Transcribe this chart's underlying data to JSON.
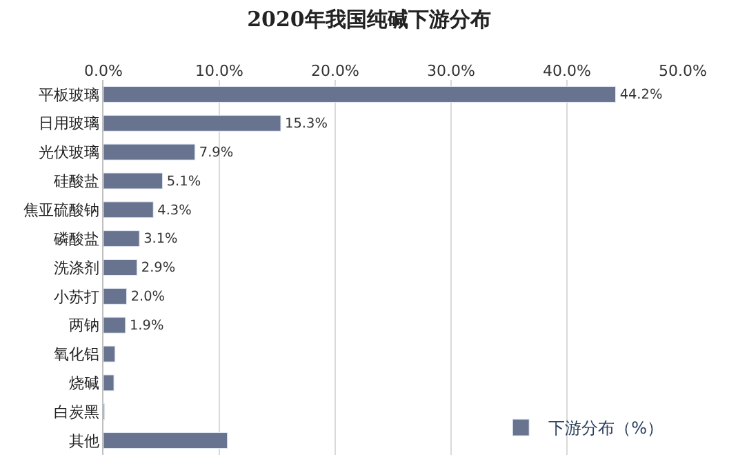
{
  "chart_data": {
    "type": "bar",
    "orientation": "horizontal",
    "title": "2020年我国纯碱下游分布",
    "categories": [
      "平板玻璃",
      "日用玻璃",
      "光伏玻璃",
      "硅酸盐",
      "焦亚硫酸钠",
      "磷酸盐",
      "洗涤剂",
      "小苏打",
      "两钠",
      "氧化铝",
      "烧碱",
      "白炭黑",
      "其他"
    ],
    "series": [
      {
        "name": "下游分布（%）",
        "color": "#68738f",
        "values": [
          44.2,
          15.3,
          7.9,
          5.1,
          4.3,
          3.1,
          2.9,
          2.0,
          1.9,
          1.0,
          0.9,
          0.1,
          10.7
        ],
        "value_labels": [
          "44.2%",
          "15.3%",
          "7.9%",
          "5.1%",
          "4.3%",
          "3.1%",
          "2.9%",
          "2.0%",
          "1.9%",
          null,
          null,
          null,
          null
        ]
      }
    ],
    "xlim": [
      0,
      50
    ],
    "xticks": [
      {
        "value": 0,
        "label": "0.0%"
      },
      {
        "value": 10,
        "label": "10.0%"
      },
      {
        "value": 20,
        "label": "20.0%"
      },
      {
        "value": 30,
        "label": "30.0%"
      },
      {
        "value": 40,
        "label": "40.0%"
      },
      {
        "value": 50,
        "label": "50.0%"
      }
    ],
    "grid": "x",
    "legend": "bottom right"
  }
}
